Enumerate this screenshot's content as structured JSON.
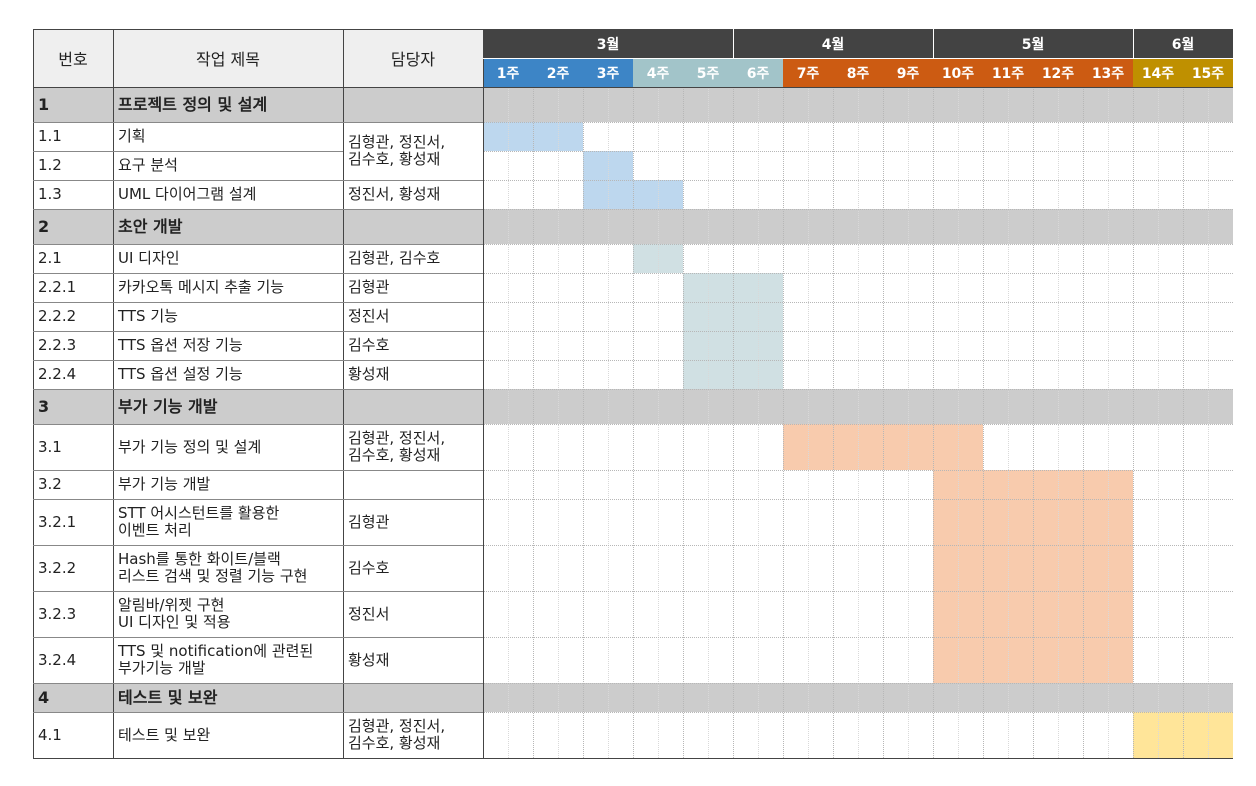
{
  "headers": {
    "num": "번호",
    "title": "작업 제목",
    "owner": "담당자"
  },
  "months": [
    {
      "label": "3월",
      "span": 5
    },
    {
      "label": "4월",
      "span": 4
    },
    {
      "label": "5월",
      "span": 4
    },
    {
      "label": "6월",
      "span": 2
    }
  ],
  "weeks": [
    {
      "label": "1주",
      "color": "#3d85c6"
    },
    {
      "label": "2주",
      "color": "#3d85c6"
    },
    {
      "label": "3주",
      "color": "#3d85c6"
    },
    {
      "label": "4주",
      "color": "#a2c4c9"
    },
    {
      "label": "5주",
      "color": "#a2c4c9"
    },
    {
      "label": "6주",
      "color": "#a2c4c9"
    },
    {
      "label": "7주",
      "color": "#cc5b12"
    },
    {
      "label": "8주",
      "color": "#cc5b12"
    },
    {
      "label": "9주",
      "color": "#cc5b12"
    },
    {
      "label": "10주",
      "color": "#cc5b12"
    },
    {
      "label": "11주",
      "color": "#cc5b12"
    },
    {
      "label": "12주",
      "color": "#cc5b12"
    },
    {
      "label": "13주",
      "color": "#cc5b12"
    },
    {
      "label": "14주",
      "color": "#bf9000"
    },
    {
      "label": "15주",
      "color": "#bf9000"
    }
  ],
  "rows": [
    {
      "num": "1",
      "title": "프로젝트 정의 및 설계",
      "section": true
    },
    {
      "num": "1.1",
      "title": "기획"
    },
    {
      "num": "1.2",
      "title": "요구 분석"
    },
    {
      "num": "1.3",
      "title": "UML 다이어그램 설계",
      "owner": "정진서, 황성재"
    },
    {
      "num": "2",
      "title": "초안 개발",
      "section": true
    },
    {
      "num": "2.1",
      "title": "UI 디자인",
      "owner": "김형관, 김수호"
    },
    {
      "num": "2.2.1",
      "title": "카카오톡 메시지 추출 기능",
      "owner": "김형관"
    },
    {
      "num": "2.2.2",
      "title": "TTS 기능",
      "owner": "정진서"
    },
    {
      "num": "2.2.3",
      "title": "TTS 옵션 저장 기능",
      "owner": "김수호"
    },
    {
      "num": "2.2.4",
      "title": "TTS 옵션 설정 기능",
      "owner": "황성재"
    },
    {
      "num": "3",
      "title": "부가 기능 개발",
      "section": true
    },
    {
      "num": "3.1",
      "title": "부가 기능 정의 및 설계",
      "owner": "김형관, 정진서,\n김수호, 황성재"
    },
    {
      "num": "3.2",
      "title": "부가 기능 개발"
    },
    {
      "num": "3.2.1",
      "title": "STT 어시스턴트를 활용한\n이벤트 처리",
      "owner": "김형관"
    },
    {
      "num": "3.2.2",
      "title": "Hash를 통한 화이트/블랙\n리스트 검색 및 정렬 기능 구현",
      "owner": "김수호"
    },
    {
      "num": "3.2.3",
      "title": "알림바/위젯 구현\nUI 디자인 및 적용",
      "owner": "정진서"
    },
    {
      "num": "3.2.4",
      "title": "TTS 및 notification에 관련된\n부가기능 개발",
      "owner": "황성재"
    },
    {
      "num": "4",
      "title": "테스트 및 보완",
      "section": true
    },
    {
      "num": "4.1",
      "title": "테스트 및 보완",
      "owner": "김형관, 정진서,\n김수호, 황성재"
    }
  ],
  "merged_owner_1_1_to_1_2": "김형관, 정진서,\n김수호, 황성재",
  "bars": [
    {
      "row": 1,
      "start": 1,
      "end": 2,
      "color": "#bdd7ee"
    },
    {
      "row": 2,
      "start": 3,
      "end": 3,
      "color": "#bdd7ee"
    },
    {
      "row": 3,
      "start": 3,
      "end": 4,
      "color": "#bdd7ee"
    },
    {
      "row": 5,
      "start": 4,
      "end": 4,
      "color": "#d0e0e3"
    },
    {
      "row": 6,
      "start": 5,
      "end": 6,
      "color": "#d0e0e3"
    },
    {
      "row": 7,
      "start": 5,
      "end": 6,
      "color": "#d0e0e3"
    },
    {
      "row": 8,
      "start": 5,
      "end": 6,
      "color": "#d0e0e3"
    },
    {
      "row": 9,
      "start": 5,
      "end": 6,
      "color": "#d0e0e3"
    },
    {
      "row": 11,
      "start": 7,
      "end": 10,
      "color": "#f8cbad"
    },
    {
      "row": 12,
      "start": 10,
      "end": 13,
      "color": "#f8cbad"
    },
    {
      "row": 13,
      "start": 10,
      "end": 13,
      "color": "#f8cbad"
    },
    {
      "row": 14,
      "start": 10,
      "end": 13,
      "color": "#f8cbad"
    },
    {
      "row": 15,
      "start": 10,
      "end": 13,
      "color": "#f8cbad"
    },
    {
      "row": 16,
      "start": 10,
      "end": 13,
      "color": "#f8cbad"
    },
    {
      "row": 18,
      "start": 14,
      "end": 15,
      "color": "#ffe599"
    }
  ],
  "colors": {
    "section_bg": "#cccccc",
    "month_bg": "#434343",
    "header_bg": "#efefef"
  }
}
